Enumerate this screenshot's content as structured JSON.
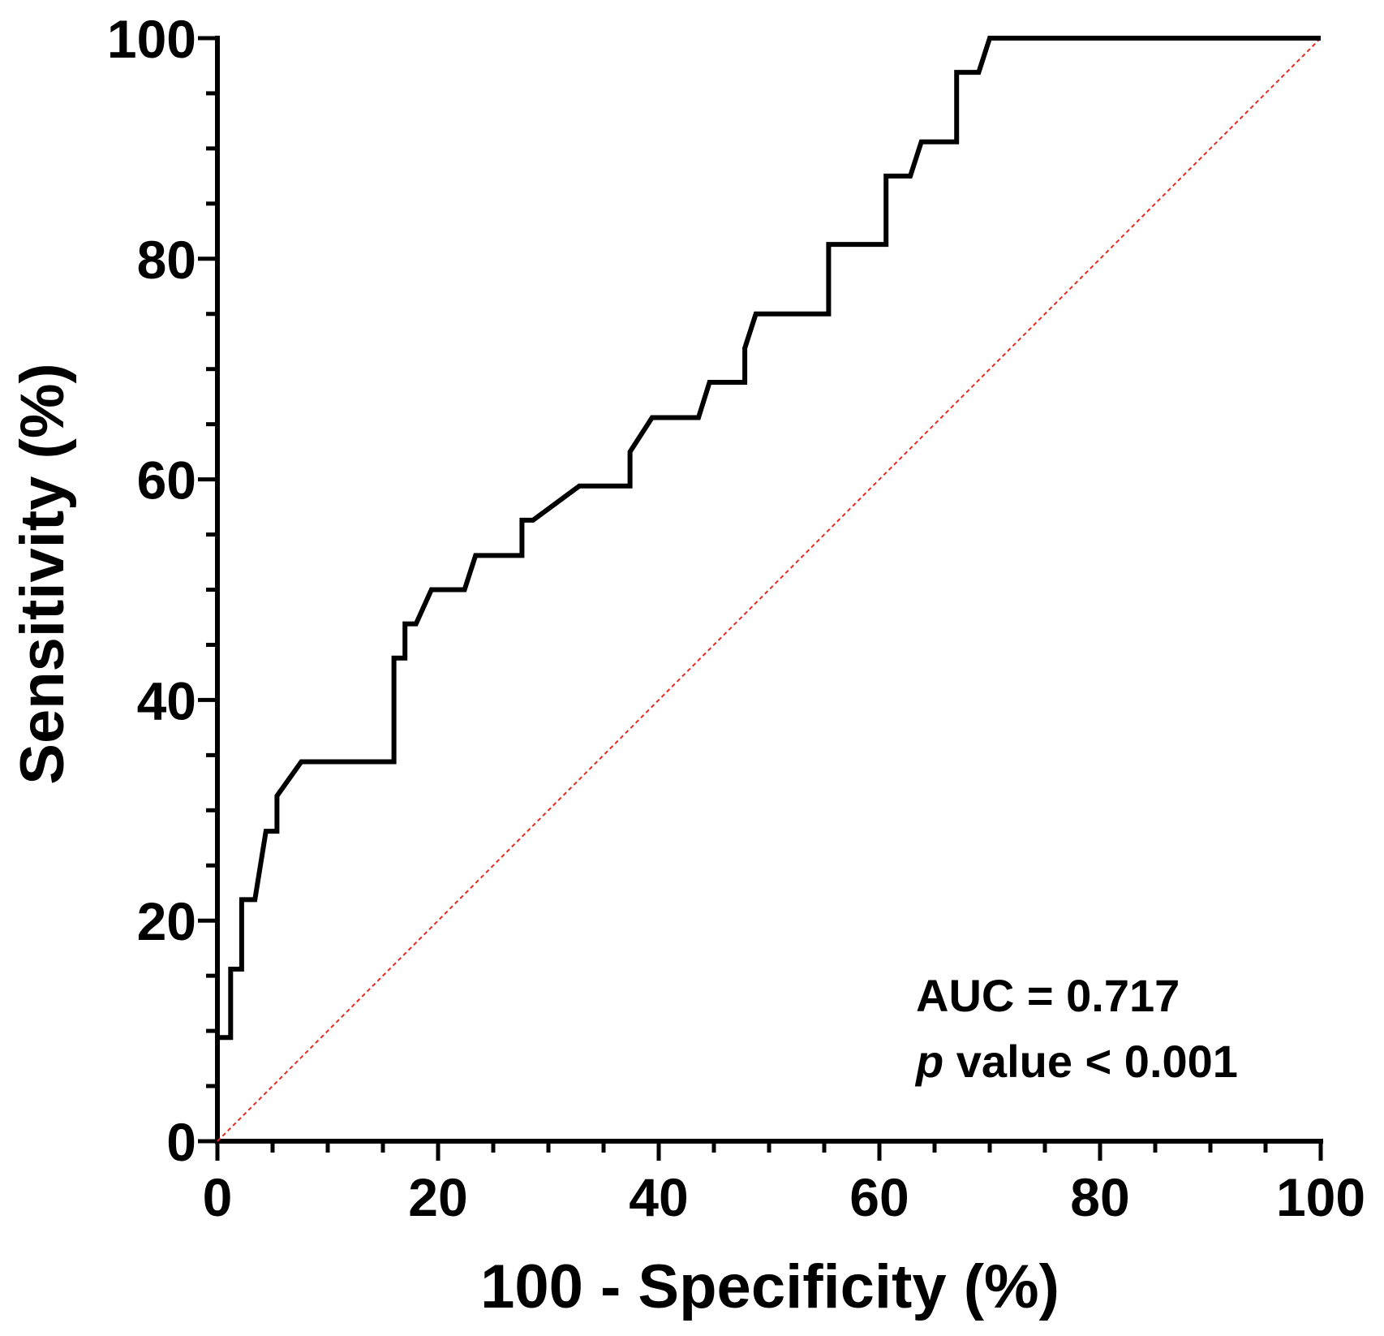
{
  "chart_data": {
    "type": "line",
    "xlabel": "100 - Specificity (%)",
    "ylabel": "Sensitivity (%)",
    "xlim": [
      0,
      100
    ],
    "ylim": [
      0,
      100
    ],
    "x_ticks": [
      0,
      20,
      40,
      60,
      80,
      100
    ],
    "y_ticks": [
      0,
      20,
      40,
      60,
      80,
      100
    ],
    "x_tick_labels": [
      "0",
      "20",
      "40",
      "60",
      "80",
      "100"
    ],
    "y_tick_labels": [
      "0",
      "20",
      "40",
      "60",
      "80",
      "100"
    ],
    "minor_tick_step": 5,
    "grid": false,
    "legend": "none",
    "annotations": {
      "auc": "AUC = 0.717",
      "p_symbol": "p",
      "p_text": " value < 0.001",
      "placement": "bottom-right"
    },
    "series": [
      {
        "color": "#000000",
        "style": "solid-step",
        "points": [
          [
            0,
            9.4
          ],
          [
            1.2,
            9.4
          ],
          [
            1.2,
            15.6
          ],
          [
            2.2,
            15.6
          ],
          [
            2.2,
            21.9
          ],
          [
            3.4,
            21.9
          ],
          [
            4.4,
            28.1
          ],
          [
            5.4,
            28.1
          ],
          [
            5.4,
            31.3
          ],
          [
            7.6,
            34.4
          ],
          [
            16,
            34.4
          ],
          [
            16,
            43.8
          ],
          [
            17,
            43.8
          ],
          [
            17,
            46.9
          ],
          [
            18,
            46.9
          ],
          [
            19.4,
            50
          ],
          [
            22.4,
            50
          ],
          [
            23.4,
            53.1
          ],
          [
            27.6,
            53.1
          ],
          [
            27.6,
            56.3
          ],
          [
            28.6,
            56.3
          ],
          [
            32.8,
            59.4
          ],
          [
            37.4,
            59.4
          ],
          [
            37.4,
            62.5
          ],
          [
            39.4,
            65.6
          ],
          [
            43.6,
            65.6
          ],
          [
            44.6,
            68.8
          ],
          [
            47.8,
            68.8
          ],
          [
            47.8,
            71.9
          ],
          [
            48.8,
            75
          ],
          [
            55.4,
            75
          ],
          [
            55.4,
            81.3
          ],
          [
            60.6,
            81.3
          ],
          [
            60.6,
            87.5
          ],
          [
            62.8,
            87.5
          ],
          [
            63.8,
            90.6
          ],
          [
            67,
            90.6
          ],
          [
            67,
            96.9
          ],
          [
            69,
            96.9
          ],
          [
            70,
            100
          ],
          [
            100,
            100
          ]
        ]
      },
      {
        "color": "#e8291f",
        "style": "dotted",
        "points": [
          [
            0,
            0
          ],
          [
            100,
            100
          ]
        ]
      }
    ]
  }
}
